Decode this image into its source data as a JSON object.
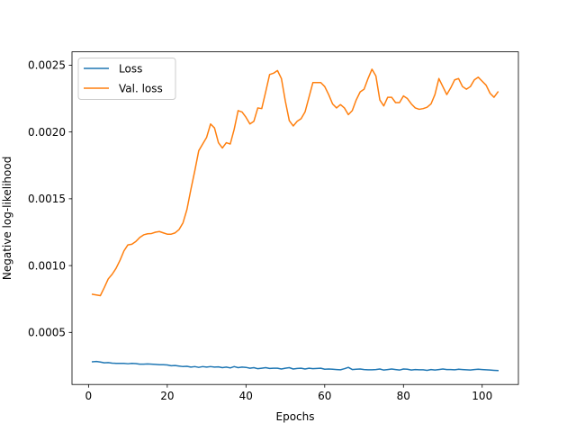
{
  "chart_data": {
    "type": "line",
    "xlabel": "Epochs",
    "ylabel": "Negative log-likelihood",
    "xlim": [
      -4.2,
      109.2
    ],
    "ylim": [
      0.00011,
      0.0026
    ],
    "xticks": [
      0,
      20,
      40,
      60,
      80,
      100
    ],
    "yticks": [
      0.0005,
      0.001,
      0.0015,
      0.002,
      0.0025
    ],
    "ytick_labels": [
      "0.0005",
      "0.0010",
      "0.0015",
      "0.0020",
      "0.0025"
    ],
    "grid": false,
    "legend": {
      "position": "top-left",
      "entries": [
        "Loss",
        "Val. loss"
      ]
    },
    "colors": {
      "Loss": "#1f77b4",
      "Val. loss": "#ff7f0e"
    },
    "x": [
      1,
      2,
      3,
      4,
      5,
      6,
      7,
      8,
      9,
      10,
      11,
      12,
      13,
      14,
      15,
      16,
      17,
      18,
      19,
      20,
      21,
      22,
      23,
      24,
      25,
      26,
      27,
      28,
      29,
      30,
      31,
      32,
      33,
      34,
      35,
      36,
      37,
      38,
      39,
      40,
      41,
      42,
      43,
      44,
      45,
      46,
      47,
      48,
      49,
      50,
      51,
      52,
      53,
      54,
      55,
      56,
      57,
      58,
      59,
      60,
      61,
      62,
      63,
      64,
      65,
      66,
      67,
      68,
      69,
      70,
      71,
      72,
      73,
      74,
      75,
      76,
      77,
      78,
      79,
      80,
      81,
      82,
      83,
      84,
      85,
      86,
      87,
      88,
      89,
      90,
      91,
      92,
      93,
      94,
      95,
      96,
      97,
      98,
      99,
      100,
      101,
      102,
      103,
      104
    ],
    "series": [
      {
        "name": "Loss",
        "values": [
          0.00028,
          0.000282,
          0.000278,
          0.000272,
          0.000274,
          0.00027,
          0.000268,
          0.000268,
          0.000268,
          0.000265,
          0.000268,
          0.000266,
          0.000262,
          0.000262,
          0.000264,
          0.000262,
          0.00026,
          0.000258,
          0.000258,
          0.000256,
          0.00025,
          0.000252,
          0.000248,
          0.000244,
          0.000246,
          0.00024,
          0.000244,
          0.000238,
          0.000244,
          0.00024,
          0.000244,
          0.00024,
          0.000242,
          0.000236,
          0.00024,
          0.000234,
          0.000244,
          0.000236,
          0.00024,
          0.000238,
          0.000232,
          0.000236,
          0.000228,
          0.000232,
          0.000236,
          0.00023,
          0.000232,
          0.000232,
          0.000226,
          0.000232,
          0.000236,
          0.000226,
          0.00023,
          0.000232,
          0.000226,
          0.000232,
          0.000228,
          0.00023,
          0.000232,
          0.000224,
          0.000226,
          0.000224,
          0.000222,
          0.00022,
          0.000228,
          0.000238,
          0.000222,
          0.000224,
          0.000226,
          0.000222,
          0.00022,
          0.00022,
          0.000222,
          0.000226,
          0.000218,
          0.000222,
          0.000226,
          0.000222,
          0.000218,
          0.000226,
          0.000224,
          0.000218,
          0.000222,
          0.00022,
          0.00022,
          0.000216,
          0.000222,
          0.000218,
          0.000222,
          0.000226,
          0.000222,
          0.000222,
          0.00022,
          0.000224,
          0.000222,
          0.00022,
          0.000218,
          0.000222,
          0.000224,
          0.000222,
          0.00022,
          0.000218,
          0.000216,
          0.000214
        ]
      },
      {
        "name": "Val. loss",
        "values": [
          0.000785,
          0.00078,
          0.000775,
          0.000835,
          0.0009,
          0.000935,
          0.00098,
          0.00104,
          0.00111,
          0.001155,
          0.00116,
          0.00118,
          0.00121,
          0.00123,
          0.001238,
          0.00124,
          0.00125,
          0.001255,
          0.001245,
          0.001235,
          0.001235,
          0.001245,
          0.00127,
          0.00132,
          0.00142,
          0.00157,
          0.00171,
          0.00186,
          0.00191,
          0.00196,
          0.00206,
          0.00203,
          0.00192,
          0.00188,
          0.00192,
          0.00191,
          0.00202,
          0.00216,
          0.00215,
          0.00211,
          0.00206,
          0.00208,
          0.00218,
          0.002175,
          0.0023,
          0.00243,
          0.00244,
          0.00246,
          0.0024,
          0.00223,
          0.002085,
          0.002045,
          0.00208,
          0.0021,
          0.00215,
          0.00226,
          0.00237,
          0.00237,
          0.00237,
          0.00234,
          0.00228,
          0.00221,
          0.00218,
          0.002205,
          0.00218,
          0.00213,
          0.00216,
          0.00224,
          0.0023,
          0.00232,
          0.0024,
          0.00247,
          0.00242,
          0.00224,
          0.002195,
          0.00226,
          0.00226,
          0.00222,
          0.00222,
          0.00227,
          0.00225,
          0.00221,
          0.00218,
          0.00217,
          0.002175,
          0.002185,
          0.00221,
          0.00228,
          0.0024,
          0.00234,
          0.00228,
          0.00233,
          0.00239,
          0.0024,
          0.00234,
          0.00232,
          0.00234,
          0.00239,
          0.00241,
          0.00238,
          0.00235,
          0.00229,
          0.00226,
          0.0023
        ]
      }
    ]
  }
}
